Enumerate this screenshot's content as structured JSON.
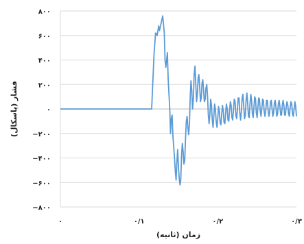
{
  "chart_data": {
    "type": "line",
    "title": "",
    "xlabel": "زمان (ثانیه)",
    "ylabel": "فشار (پاسکال)",
    "xlim": [
      0,
      0.3
    ],
    "ylim": [
      -800,
      800
    ],
    "grid": "horizontal",
    "legend": "none",
    "line_color": "#5b9bd5",
    "x_tick_labels": [
      "۰",
      "۰/۱",
      "۰/۲",
      "۰/۳"
    ],
    "y_tick_labels": [
      "۸۰۰",
      "۶۰۰",
      "۴۰۰",
      "۲۰۰",
      "۰",
      "−۲۰۰",
      "−۴۰۰",
      "−۶۰۰",
      "−۸۰۰"
    ],
    "series": [
      {
        "values": [
          [
            0,
            0
          ],
          [
            0.05,
            0
          ],
          [
            0.1,
            0
          ],
          [
            0.116,
            0
          ],
          [
            0.119,
            450
          ],
          [
            0.121,
            620
          ],
          [
            0.123,
            600
          ],
          [
            0.125,
            680
          ],
          [
            0.126,
            640
          ],
          [
            0.128,
            700
          ],
          [
            0.13,
            760
          ],
          [
            0.132,
            620
          ],
          [
            0.133,
            400
          ],
          [
            0.134,
            340
          ],
          [
            0.136,
            460
          ],
          [
            0.137,
            240
          ],
          [
            0.139,
            0
          ],
          [
            0.14,
            -200
          ],
          [
            0.141,
            -80
          ],
          [
            0.142,
            -50
          ],
          [
            0.143,
            -220
          ],
          [
            0.145,
            -400
          ],
          [
            0.146,
            -500
          ],
          [
            0.147,
            -580
          ],
          [
            0.148,
            -440
          ],
          [
            0.149,
            -330
          ],
          [
            0.15,
            -470
          ],
          [
            0.151,
            -560
          ],
          [
            0.152,
            -620
          ],
          [
            0.153,
            -580
          ],
          [
            0.154,
            -380
          ],
          [
            0.155,
            -280
          ],
          [
            0.156,
            -350
          ],
          [
            0.157,
            -450
          ],
          [
            0.158,
            -420
          ],
          [
            0.159,
            -250
          ],
          [
            0.16,
            -100
          ],
          [
            0.161,
            -60
          ],
          [
            0.162,
            -150
          ],
          [
            0.163,
            -210
          ],
          [
            0.164,
            -120
          ],
          [
            0.165,
            100
          ],
          [
            0.166,
            230
          ],
          [
            0.167,
            150
          ],
          [
            0.168,
            0
          ],
          [
            0.169,
            80
          ],
          [
            0.17,
            280
          ],
          [
            0.171,
            350
          ],
          [
            0.172,
            220
          ],
          [
            0.173,
            60
          ],
          [
            0.174,
            110
          ],
          [
            0.175,
            250
          ],
          [
            0.176,
            280
          ],
          [
            0.177,
            180
          ],
          [
            0.178,
            60
          ],
          [
            0.179,
            90
          ],
          [
            0.18,
            210
          ],
          [
            0.181,
            240
          ],
          [
            0.182,
            150
          ],
          [
            0.183,
            60
          ],
          [
            0.184,
            80
          ],
          [
            0.185,
            170
          ],
          [
            0.186,
            200
          ],
          [
            0.187,
            110
          ],
          [
            0.188,
            -50
          ],
          [
            0.189,
            -120
          ],
          [
            0.19,
            -40
          ],
          [
            0.191,
            80
          ],
          [
            0.192,
            30
          ],
          [
            0.193,
            -90
          ],
          [
            0.194,
            -150
          ],
          [
            0.195,
            -60
          ],
          [
            0.196,
            40
          ],
          [
            0.197,
            0
          ],
          [
            0.198,
            -100
          ],
          [
            0.199,
            -150
          ],
          [
            0.2,
            -80
          ],
          [
            0.201,
            20
          ],
          [
            0.202,
            -20
          ],
          [
            0.203,
            -110
          ],
          [
            0.204,
            -130
          ],
          [
            0.205,
            -40
          ],
          [
            0.206,
            30
          ],
          [
            0.207,
            -20
          ],
          [
            0.208,
            -110
          ],
          [
            0.209,
            -120
          ],
          [
            0.21,
            -30
          ],
          [
            0.211,
            40
          ],
          [
            0.212,
            0
          ],
          [
            0.213,
            -90
          ],
          [
            0.214,
            -100
          ],
          [
            0.215,
            -10
          ],
          [
            0.216,
            60
          ],
          [
            0.217,
            30
          ],
          [
            0.218,
            -70
          ],
          [
            0.219,
            -90
          ],
          [
            0.22,
            0
          ],
          [
            0.221,
            80
          ],
          [
            0.222,
            60
          ],
          [
            0.223,
            -50
          ],
          [
            0.224,
            -80
          ],
          [
            0.225,
            0
          ],
          [
            0.226,
            90
          ],
          [
            0.227,
            90
          ],
          [
            0.228,
            -30
          ],
          [
            0.229,
            -90
          ],
          [
            0.23,
            -20
          ],
          [
            0.231,
            90
          ],
          [
            0.232,
            120
          ],
          [
            0.233,
            20
          ],
          [
            0.234,
            -80
          ],
          [
            0.235,
            -50
          ],
          [
            0.236,
            70
          ],
          [
            0.237,
            130
          ],
          [
            0.238,
            50
          ],
          [
            0.239,
            -60
          ],
          [
            0.24,
            -70
          ],
          [
            0.241,
            40
          ],
          [
            0.242,
            120
          ],
          [
            0.243,
            70
          ],
          [
            0.244,
            -40
          ],
          [
            0.245,
            -70
          ],
          [
            0.246,
            20
          ],
          [
            0.247,
            100
          ],
          [
            0.248,
            80
          ],
          [
            0.249,
            -30
          ],
          [
            0.25,
            -70
          ],
          [
            0.251,
            10
          ],
          [
            0.252,
            90
          ],
          [
            0.253,
            80
          ],
          [
            0.254,
            -20
          ],
          [
            0.255,
            -60
          ],
          [
            0.256,
            0
          ],
          [
            0.257,
            80
          ],
          [
            0.258,
            70
          ],
          [
            0.259,
            -20
          ],
          [
            0.26,
            -60
          ],
          [
            0.261,
            -10
          ],
          [
            0.262,
            70
          ],
          [
            0.263,
            70
          ],
          [
            0.264,
            -10
          ],
          [
            0.265,
            -60
          ],
          [
            0.266,
            -20
          ],
          [
            0.267,
            60
          ],
          [
            0.268,
            70
          ],
          [
            0.269,
            0
          ],
          [
            0.27,
            -60
          ],
          [
            0.271,
            -30
          ],
          [
            0.272,
            50
          ],
          [
            0.273,
            70
          ],
          [
            0.274,
            10
          ],
          [
            0.275,
            -60
          ],
          [
            0.276,
            -40
          ],
          [
            0.277,
            40
          ],
          [
            0.278,
            70
          ],
          [
            0.279,
            20
          ],
          [
            0.28,
            -50
          ],
          [
            0.281,
            -50
          ],
          [
            0.282,
            30
          ],
          [
            0.283,
            70
          ],
          [
            0.284,
            30
          ],
          [
            0.285,
            -50
          ],
          [
            0.286,
            -50
          ],
          [
            0.287,
            20
          ],
          [
            0.288,
            60
          ],
          [
            0.289,
            30
          ],
          [
            0.29,
            -40
          ],
          [
            0.291,
            -60
          ],
          [
            0.292,
            10
          ],
          [
            0.293,
            60
          ],
          [
            0.294,
            40
          ],
          [
            0.295,
            -40
          ],
          [
            0.296,
            -60
          ],
          [
            0.297,
            0
          ],
          [
            0.298,
            60
          ],
          [
            0.299,
            20
          ],
          [
            0.3,
            -60
          ]
        ]
      }
    ]
  }
}
